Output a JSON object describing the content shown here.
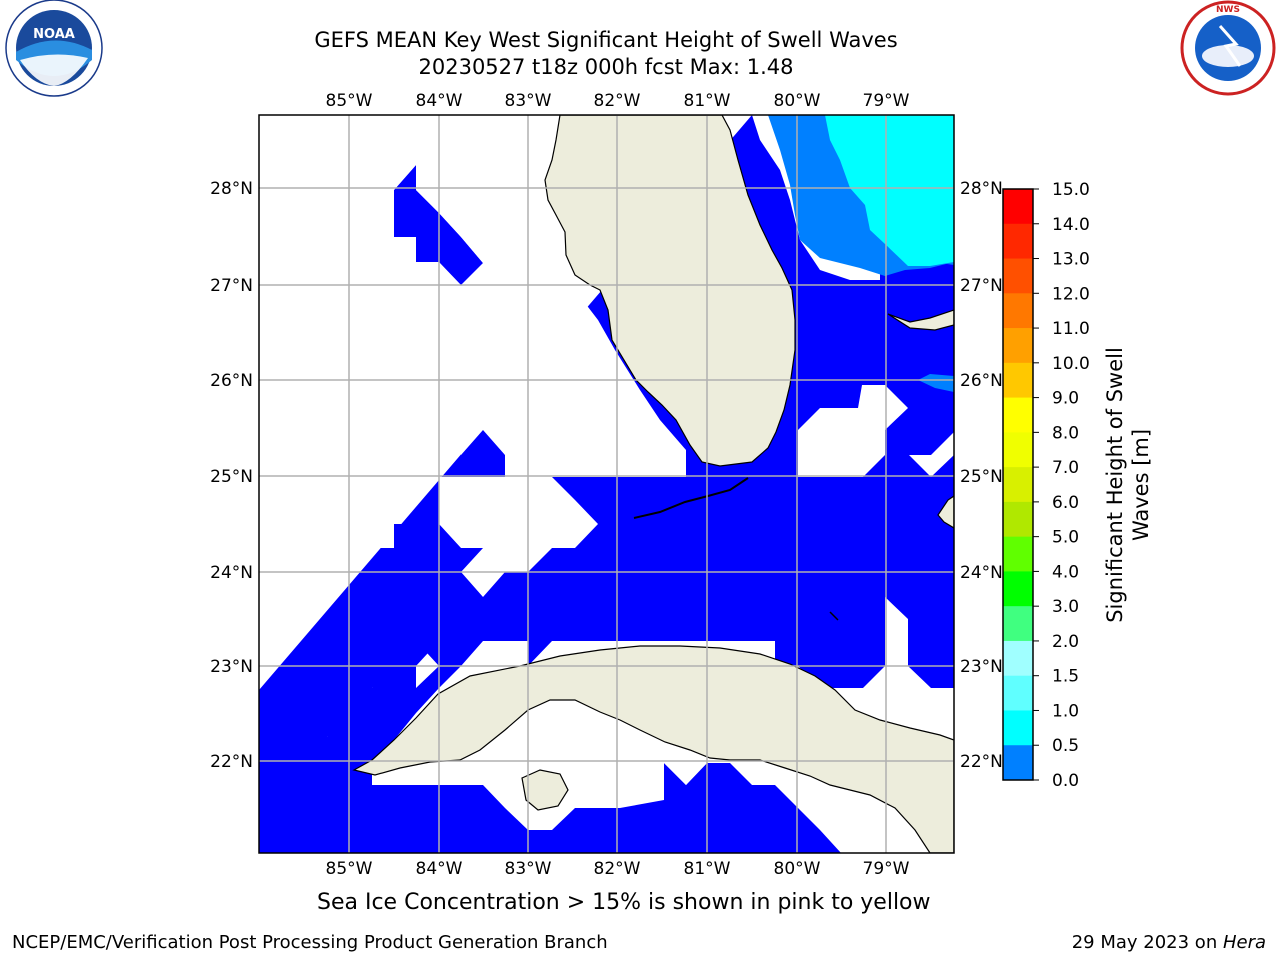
{
  "header": {
    "title_line1": "GEFS MEAN Key West Significant Height of Swell Waves",
    "title_line2": "20230527 t18z 000h fcst   Max: 1.48"
  },
  "logos": {
    "left": {
      "text": "NOAA",
      "ring_text": "NATIONAL OCEANIC AND ATMOSPHERIC ADMINISTRATION · U.S. DEPARTMENT OF COMMERCE"
    },
    "right": {
      "ring_text": "NATIONAL WEATHER SERVICE"
    }
  },
  "map": {
    "lon_ticks": [
      "85°W",
      "84°W",
      "83°W",
      "82°W",
      "81°W",
      "80°W",
      "79°W"
    ],
    "lat_ticks": [
      "28°N",
      "27°N",
      "26°N",
      "25°N",
      "24°N",
      "23°N",
      "22°N"
    ],
    "colors": {
      "land": "#ededdc",
      "swell_0_0.5": "#0000ff",
      "swell_0.5_1.0": "#0080ff",
      "swell_1.0_1.5": "#00ffff",
      "grid": "#b0b0b0"
    }
  },
  "colorbar": {
    "ticks": [
      "15.0",
      "14.0",
      "13.0",
      "12.0",
      "11.0",
      "10.0",
      "9.0",
      "8.0",
      "7.0",
      "6.0",
      "5.0",
      "4.0",
      "3.0",
      "2.0",
      "1.5",
      "1.0",
      "0.5",
      "0.0"
    ],
    "colors_top_to_bottom": [
      "#ff0000",
      "#ff2800",
      "#ff5000",
      "#ff7800",
      "#ffa000",
      "#ffc800",
      "#ffff00",
      "#f0ff00",
      "#d8f000",
      "#b0e800",
      "#60ff00",
      "#00ff00",
      "#40ff80",
      "#a0ffff",
      "#60ffff",
      "#00ffff",
      "#0080ff",
      "#0000ff"
    ],
    "label_line1": "Significant Height of Swell",
    "label_line2": "Waves [m]"
  },
  "caption": "Sea Ice Concentration > 15% is shown in pink to yellow",
  "footer": {
    "left": "NCEP/EMC/Verification Post Processing Product Generation Branch",
    "right_prefix": "29 May 2023 on ",
    "right_host": "Hera"
  }
}
